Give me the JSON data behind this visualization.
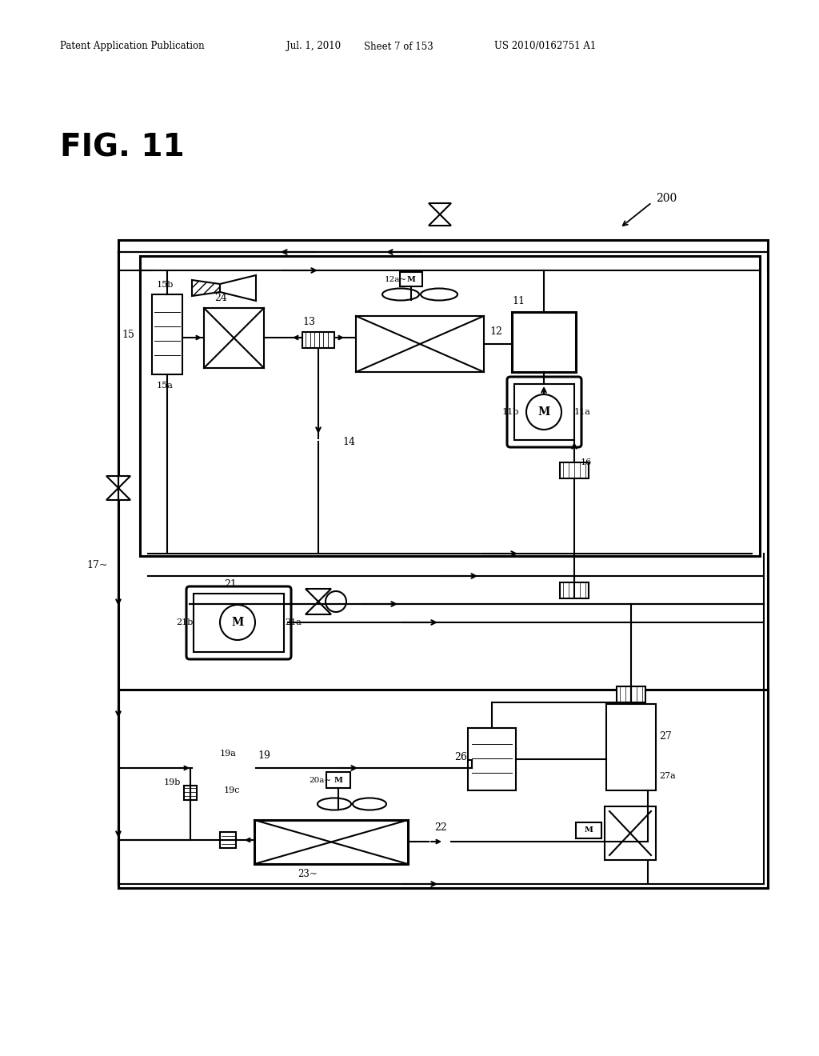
{
  "header_left": "Patent Application Publication",
  "header_date": "Jul. 1, 2010",
  "header_sheet": "Sheet 7 of 153",
  "header_patent": "US 2010/0162751 A1",
  "fig_title": "FIG. 11",
  "label_200": "200",
  "background": "#ffffff"
}
